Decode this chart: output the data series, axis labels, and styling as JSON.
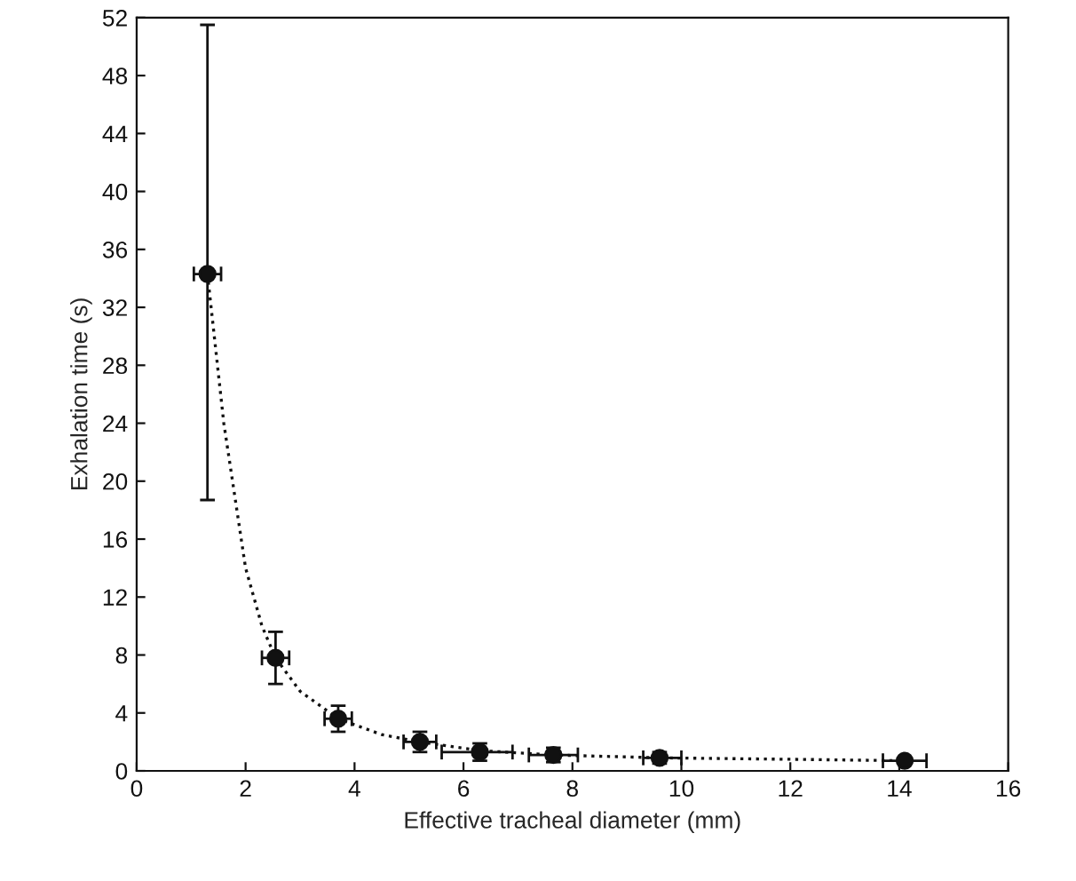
{
  "chart_data": {
    "type": "scatter",
    "xlabel": "Effective tracheal diameter (mm)",
    "ylabel": "Exhalation time (s)",
    "xlim": [
      0,
      16
    ],
    "xticks": [
      0,
      2,
      4,
      6,
      8,
      10,
      12,
      14,
      16
    ],
    "ylim": [
      0,
      52
    ],
    "yticks": [
      0,
      4,
      8,
      12,
      16,
      20,
      24,
      28,
      32,
      36,
      40,
      44,
      48,
      52
    ],
    "grid": false,
    "marker": "circle",
    "series": [
      {
        "color": "#111111",
        "x": [
          1.3,
          2.55,
          3.7,
          5.2,
          6.3,
          7.65,
          9.6,
          14.1
        ],
        "values": [
          34.3,
          7.8,
          3.6,
          2.0,
          1.3,
          1.1,
          0.9,
          0.7
        ],
        "errors": [
          [
            18.7,
            51.5
          ],
          [
            6.0,
            9.6
          ],
          [
            2.7,
            4.5
          ],
          [
            1.3,
            2.7
          ],
          [
            0.7,
            1.9
          ],
          [
            0.6,
            1.6
          ],
          [
            0.5,
            1.3
          ],
          null
        ],
        "xerrors": [
          [
            1.05,
            1.55
          ],
          [
            2.3,
            2.8
          ],
          [
            3.45,
            3.95
          ],
          [
            4.9,
            5.5
          ],
          [
            5.6,
            6.9
          ],
          [
            7.2,
            8.1
          ],
          [
            9.3,
            10.0
          ],
          [
            13.7,
            14.5
          ]
        ]
      },
      {
        "type": "line",
        "color": "#111111",
        "line_style": "dotted",
        "marker": "none",
        "x": [
          1.3,
          1.6,
          2.0,
          2.3,
          2.55,
          3.0,
          3.7,
          4.5,
          5.2,
          6.3,
          7.65,
          9.6,
          12.0,
          14.1
        ],
        "values": [
          34.3,
          24,
          14,
          10,
          7.8,
          5.5,
          3.6,
          2.5,
          2.0,
          1.4,
          1.1,
          0.9,
          0.8,
          0.7
        ]
      }
    ]
  }
}
